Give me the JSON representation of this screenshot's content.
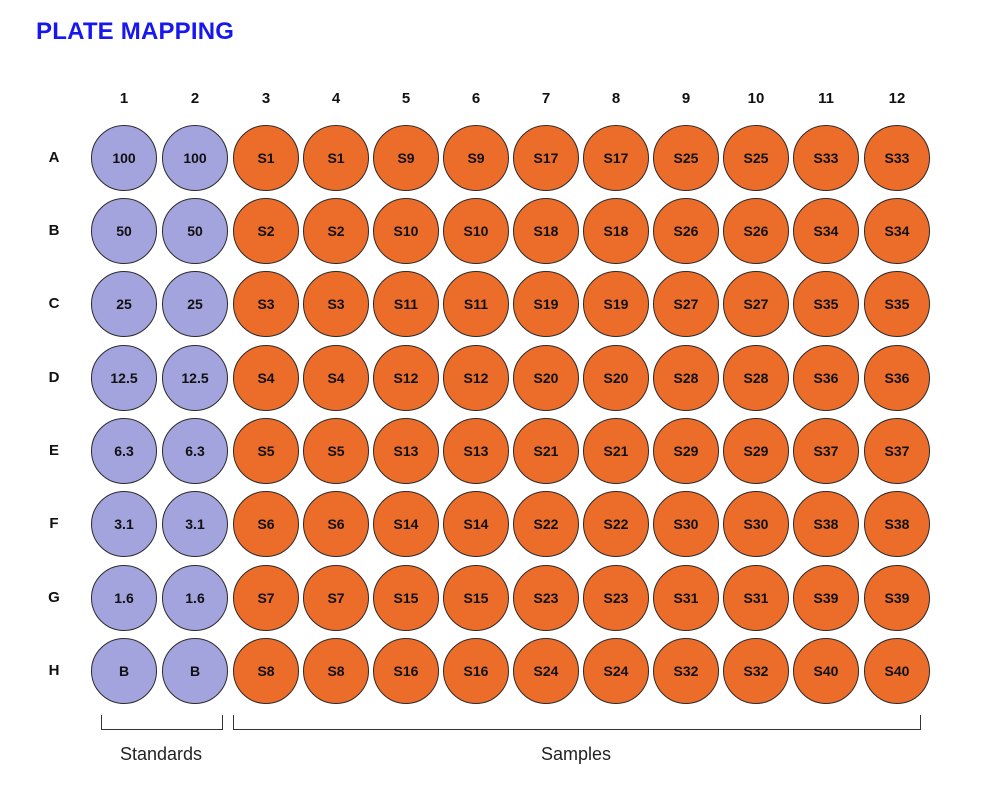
{
  "title": "PLATE MAPPING",
  "columns": [
    "1",
    "2",
    "3",
    "4",
    "5",
    "6",
    "7",
    "8",
    "9",
    "10",
    "11",
    "12"
  ],
  "rows": [
    "A",
    "B",
    "C",
    "D",
    "E",
    "F",
    "G",
    "H"
  ],
  "colors": {
    "standard": "#a3a3de",
    "sample": "#ec6c29",
    "title": "#1717ee"
  },
  "wells": [
    [
      "100",
      "100",
      "S1",
      "S1",
      "S9",
      "S9",
      "S17",
      "S17",
      "S25",
      "S25",
      "S33",
      "S33"
    ],
    [
      "50",
      "50",
      "S2",
      "S2",
      "S10",
      "S10",
      "S18",
      "S18",
      "S26",
      "S26",
      "S34",
      "S34"
    ],
    [
      "25",
      "25",
      "S3",
      "S3",
      "S11",
      "S11",
      "S19",
      "S19",
      "S27",
      "S27",
      "S35",
      "S35"
    ],
    [
      "12.5",
      "12.5",
      "S4",
      "S4",
      "S12",
      "S12",
      "S20",
      "S20",
      "S28",
      "S28",
      "S36",
      "S36"
    ],
    [
      "6.3",
      "6.3",
      "S5",
      "S5",
      "S13",
      "S13",
      "S21",
      "S21",
      "S29",
      "S29",
      "S37",
      "S37"
    ],
    [
      "3.1",
      "3.1",
      "S6",
      "S6",
      "S14",
      "S14",
      "S22",
      "S22",
      "S30",
      "S30",
      "S38",
      "S38"
    ],
    [
      "1.6",
      "1.6",
      "S7",
      "S7",
      "S15",
      "S15",
      "S23",
      "S23",
      "S31",
      "S31",
      "S39",
      "S39"
    ],
    [
      "B",
      "B",
      "S8",
      "S8",
      "S16",
      "S16",
      "S24",
      "S24",
      "S32",
      "S32",
      "S40",
      "S40"
    ]
  ],
  "groups": {
    "standards": "Standards",
    "samples": "Samples"
  }
}
